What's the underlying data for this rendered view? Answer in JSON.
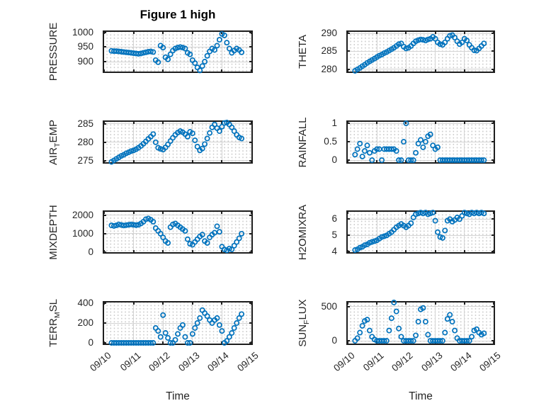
{
  "title": "Figure 1 high",
  "figure": {
    "background": "#ffffff",
    "frame_color": "#1f1f1f",
    "grid_color": "#d4d4d4",
    "text_color": "#262626",
    "marker_color": "#0072BD"
  },
  "chart_data": {
    "type": "scatter",
    "title": "Figure 1 high",
    "xlabel": "Time",
    "marker": "open-circle",
    "marker_color": "#0072BD",
    "grid": "major solid + dotted minor",
    "x_axis": {
      "unit": "hours since 09/10 00:00",
      "lim": [
        0,
        120
      ],
      "tick_hours": [
        0,
        24,
        48,
        72,
        96,
        120
      ],
      "tick_labels": [
        "09/10",
        "09/11",
        "09/12",
        "09/13",
        "09/14",
        "09/15"
      ]
    },
    "x": [
      6,
      8,
      10,
      12,
      14,
      16,
      18,
      20,
      22,
      24,
      26,
      28,
      30,
      32,
      34,
      36,
      38,
      40,
      42,
      44,
      46,
      48,
      50,
      52,
      54,
      56,
      58,
      60,
      62,
      64,
      66,
      68,
      70,
      72,
      74,
      76,
      78,
      80,
      82,
      84,
      86,
      88,
      90,
      92,
      94,
      96,
      98,
      100,
      102,
      104,
      106,
      108,
      110,
      112
    ],
    "subplots": [
      {
        "name": "PRESSURE",
        "label": {
          "pre": "PRESSURE",
          "sub": "",
          "post": ""
        },
        "col": 0,
        "row": 0,
        "yticks": [
          900,
          950,
          1000
        ],
        "ylim": [
          866,
          1002
        ],
        "values": [
          937,
          936,
          936,
          935,
          934,
          933,
          932,
          931,
          930,
          929,
          928,
          927,
          928,
          930,
          932,
          934,
          935,
          933,
          905,
          898,
          955,
          948,
          915,
          908,
          925,
          938,
          945,
          948,
          950,
          948,
          945,
          930,
          925,
          905,
          895,
          880,
          870,
          885,
          900,
          920,
          935,
          945,
          940,
          955,
          975,
          995,
          990,
          965,
          945,
          930,
          938,
          945,
          940,
          932
        ]
      },
      {
        "name": "AIR_TEMP",
        "label": {
          "pre": "AIR",
          "sub": "T",
          "post": "EMP"
        },
        "col": 0,
        "row": 1,
        "yticks": [
          275,
          280,
          285
        ],
        "ylim": [
          274.6,
          285.5
        ],
        "values": [
          274.7,
          275.1,
          275.5,
          275.9,
          276.3,
          276.6,
          277.0,
          277.3,
          277.6,
          277.8,
          278.1,
          278.5,
          279.0,
          279.6,
          280.2,
          280.9,
          281.5,
          282.2,
          280.0,
          278.5,
          278.2,
          278.0,
          278.6,
          279.4,
          280.3,
          281.2,
          282.0,
          282.6,
          283.0,
          282.7,
          282.2,
          281.5,
          282.8,
          282.4,
          280.5,
          278.8,
          277.8,
          278.3,
          279.5,
          281.0,
          282.5,
          284.0,
          284.8,
          283.8,
          283.0,
          284.2,
          285.2,
          285.3,
          284.8,
          284.0,
          283.0,
          282.0,
          281.3,
          281.0
        ]
      },
      {
        "name": "MIXDEPTH",
        "label": {
          "pre": "MIXDEPTH",
          "sub": "",
          "post": ""
        },
        "col": 0,
        "row": 2,
        "yticks": [
          0,
          1000,
          2000
        ],
        "ylim": [
          0,
          2180
        ],
        "values": [
          1450,
          1420,
          1450,
          1500,
          1470,
          1440,
          1460,
          1480,
          1500,
          1480,
          1460,
          1480,
          1550,
          1650,
          1780,
          1820,
          1750,
          1650,
          1300,
          1150,
          1000,
          800,
          600,
          500,
          1350,
          1500,
          1550,
          1450,
          1350,
          1250,
          1150,
          700,
          450,
          400,
          550,
          700,
          850,
          950,
          600,
          500,
          800,
          950,
          1050,
          1400,
          1100,
          300,
          150,
          100,
          200,
          150,
          350,
          550,
          750,
          1000
        ]
      },
      {
        "name": "TERR_MSL",
        "label": {
          "pre": "TERR",
          "sub": "M",
          "post": "SL"
        },
        "col": 0,
        "row": 3,
        "yticks": [
          0,
          200,
          400
        ],
        "ylim": [
          -7,
          407
        ],
        "values": [
          0,
          0,
          0,
          0,
          0,
          0,
          0,
          0,
          0,
          0,
          0,
          0,
          0,
          0,
          0,
          0,
          0,
          0,
          150,
          120,
          60,
          280,
          100,
          50,
          0,
          0,
          30,
          90,
          150,
          180,
          60,
          0,
          0,
          90,
          150,
          200,
          250,
          330,
          300,
          270,
          230,
          200,
          230,
          250,
          180,
          120,
          0,
          20,
          60,
          100,
          150,
          200,
          250,
          290
        ]
      },
      {
        "name": "THETA",
        "label": {
          "pre": "THETA",
          "sub": "",
          "post": ""
        },
        "col": 1,
        "row": 0,
        "yticks": [
          280,
          285,
          290
        ],
        "ylim": [
          279.4,
          290.4
        ],
        "values": [
          279.6,
          280.0,
          280.4,
          280.9,
          281.3,
          281.8,
          282.2,
          282.6,
          283.0,
          283.4,
          283.8,
          284.1,
          284.5,
          284.8,
          285.2,
          285.6,
          286.0,
          286.5,
          287.0,
          287.2,
          286.3,
          285.8,
          286.0,
          286.5,
          287.2,
          287.8,
          288.1,
          288.3,
          288.2,
          288.0,
          288.3,
          288.5,
          289.0,
          288.5,
          287.5,
          287.0,
          286.8,
          287.5,
          288.5,
          289.3,
          289.5,
          288.8,
          287.8,
          287.0,
          287.5,
          288.5,
          288.0,
          286.8,
          286.0,
          285.3,
          285.2,
          285.8,
          286.5,
          287.2
        ]
      },
      {
        "name": "RAINFALL",
        "label": {
          "pre": "RAINFALL",
          "sub": "",
          "post": ""
        },
        "col": 1,
        "row": 1,
        "yticks": [
          0,
          0.5,
          1
        ],
        "ylim": [
          -0.055,
          1.04
        ],
        "values": [
          0.15,
          0.3,
          0.45,
          0.1,
          0.25,
          0.4,
          0.2,
          0,
          0.25,
          0.3,
          0.3,
          0,
          0.3,
          0.3,
          0.3,
          0.3,
          0.3,
          0.25,
          0,
          0,
          0.5,
          1,
          0,
          0,
          0,
          0.2,
          0.45,
          0.55,
          0.35,
          0.5,
          0.65,
          0.7,
          0.4,
          0.3,
          0.35,
          0,
          0,
          0,
          0,
          0,
          0,
          0,
          0,
          0,
          0,
          0,
          0,
          0,
          0,
          0,
          0,
          0,
          0,
          0
        ]
      },
      {
        "name": "H2OMIXRA",
        "label": {
          "pre": "H2OMIXRA",
          "sub": "",
          "post": ""
        },
        "col": 1,
        "row": 2,
        "yticks": [
          4,
          5,
          6
        ],
        "ylim": [
          3.97,
          6.45
        ],
        "values": [
          4.1,
          4.15,
          4.25,
          4.3,
          4.4,
          4.45,
          4.55,
          4.6,
          4.65,
          4.7,
          4.8,
          4.9,
          4.95,
          5.0,
          5.1,
          5.2,
          5.35,
          5.5,
          5.6,
          5.7,
          5.6,
          5.5,
          5.6,
          5.75,
          6.1,
          6.3,
          6.35,
          6.4,
          6.35,
          6.4,
          6.3,
          6.35,
          6.4,
          5.9,
          5.2,
          4.9,
          4.85,
          5.3,
          5.9,
          6.0,
          5.85,
          5.95,
          6.1,
          6.0,
          6.2,
          6.4,
          6.35,
          6.3,
          6.4,
          6.35,
          6.4,
          6.35,
          6.4,
          6.35
        ]
      },
      {
        "name": "SUN_FLUX",
        "label": {
          "pre": "SUN",
          "sub": "F",
          "post": "LUX"
        },
        "col": 1,
        "row": 3,
        "yticks": [
          0,
          500
        ],
        "ylim": [
          -40,
          560
        ],
        "values": [
          0,
          40,
          120,
          220,
          290,
          310,
          150,
          60,
          20,
          0,
          0,
          0,
          0,
          0,
          150,
          330,
          560,
          430,
          180,
          60,
          0,
          0,
          0,
          0,
          0,
          80,
          280,
          460,
          480,
          280,
          90,
          0,
          0,
          0,
          0,
          0,
          0,
          120,
          320,
          380,
          280,
          150,
          40,
          0,
          0,
          0,
          0,
          0,
          60,
          150,
          170,
          120,
          90,
          110
        ]
      }
    ]
  }
}
